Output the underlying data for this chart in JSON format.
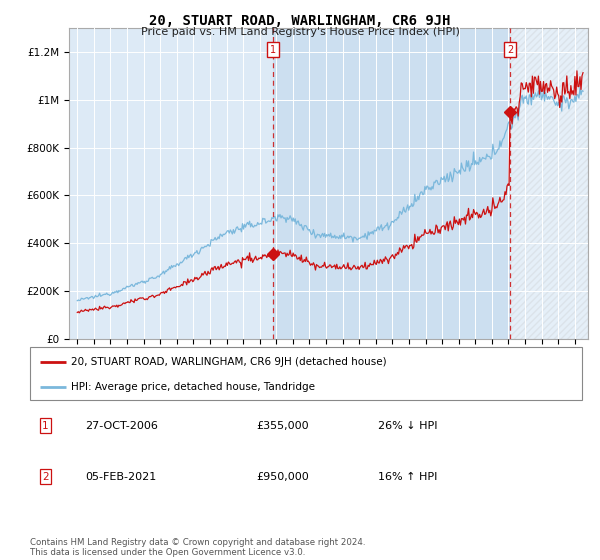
{
  "title": "20, STUART ROAD, WARLINGHAM, CR6 9JH",
  "subtitle": "Price paid vs. HM Land Registry's House Price Index (HPI)",
  "ylabel_ticks": [
    "£0",
    "£200K",
    "£400K",
    "£600K",
    "£800K",
    "£1M",
    "£1.2M"
  ],
  "ylabel_vals": [
    0,
    200000,
    400000,
    600000,
    800000,
    1000000,
    1200000
  ],
  "ylim": [
    0,
    1300000
  ],
  "xlim_start": 1994.5,
  "xlim_end": 2025.8,
  "bg_color": "#ddeaf6",
  "between_bg": "#ccdff0",
  "hpi_color": "#7bb8dc",
  "price_color": "#cc1111",
  "vline_color": "#cc1111",
  "sale1_x": 2006.82,
  "sale1_y": 355000,
  "sale1_label": "27-OCT-2006",
  "sale1_price": "£355,000",
  "sale1_hpi": "26% ↓ HPI",
  "sale2_x": 2021.09,
  "sale2_y": 950000,
  "sale2_label": "05-FEB-2021",
  "sale2_price": "£950,000",
  "sale2_hpi": "16% ↑ HPI",
  "legend_line1": "20, STUART ROAD, WARLINGHAM, CR6 9JH (detached house)",
  "legend_line2": "HPI: Average price, detached house, Tandridge",
  "footer": "Contains HM Land Registry data © Crown copyright and database right 2024.\nThis data is licensed under the Open Government Licence v3.0."
}
